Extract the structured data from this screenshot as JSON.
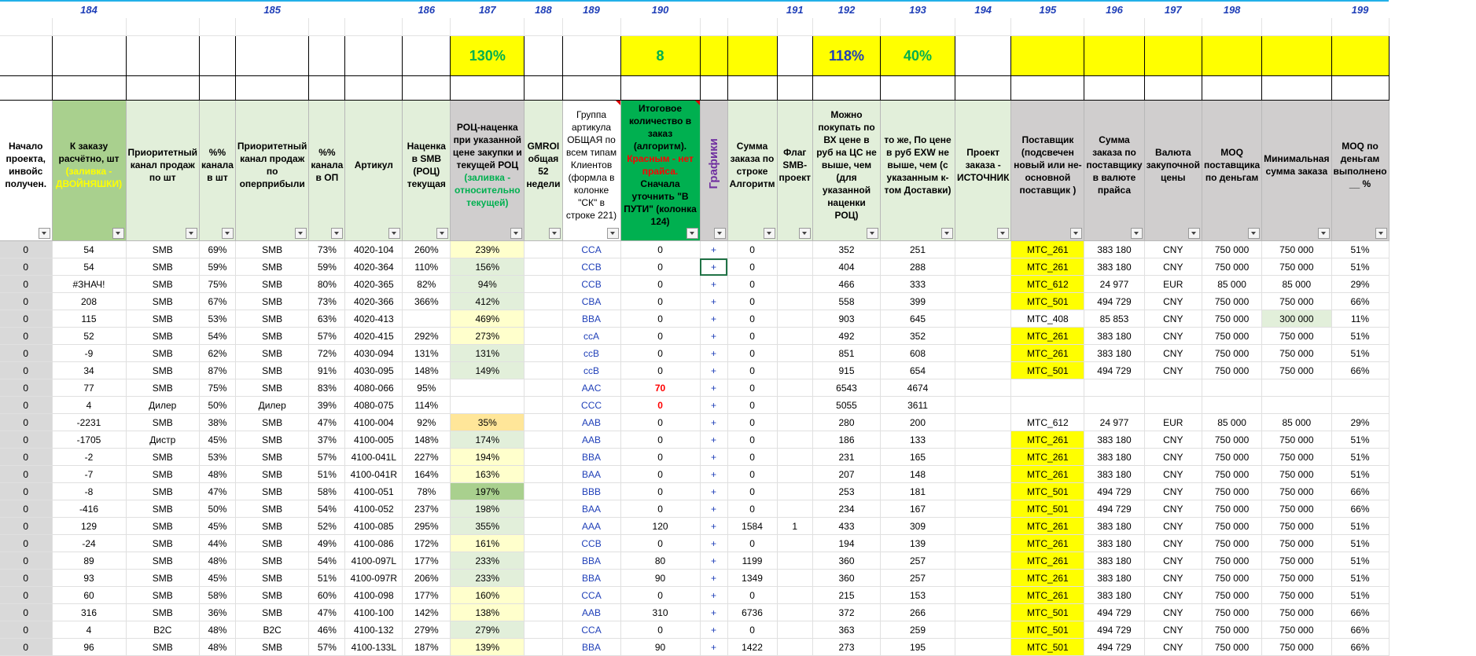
{
  "column_numbers": [
    "",
    "184",
    "",
    "",
    "185",
    "",
    "",
    "186",
    "187",
    "188",
    "189",
    "190",
    "",
    "",
    "191",
    "192",
    "193",
    "194",
    "195",
    "196",
    "197",
    "198",
    "",
    "199"
  ],
  "big_row": {
    "c187": "130%",
    "c190": "8",
    "c192": "118%",
    "c193": "40%"
  },
  "headers": {
    "h0": "Начало проекта, инвойс получен.",
    "h1a": "К заказу расчётно, шт",
    "h1b": "(заливка - ДВОЙНЯШКИ)",
    "h2": "Приоритетный канал продаж по шт",
    "h3": "%% канала в шт",
    "h4": "Приоритетный канал продаж по оперприбыли",
    "h5": "%% канала в ОП",
    "h6": "Артикул",
    "h7": "Наценка в SMB (РОЦ) текущая",
    "h8a": "РОЦ-наценка при указанной цене закупки и текущей РОЦ",
    "h8b": "(заливка - относительно текущей)",
    "h9": "GMROI общая 52 недели",
    "h10": "Группа артикула ОБЩАЯ по всем типам Клиентов (формла в колонке \"СК\" в строке 221)",
    "h11a": "Итоговое количество в заказ (алгоритм).",
    "h11b": "Красным - нет прайса.",
    "h11c": "Сначала уточнить \"В ПУТИ\" (колонка 124)",
    "h12": "Графики",
    "h13": "Сумма заказа по строке Алгоритм",
    "h14": "Флаг SMB-проект",
    "h15": "Можно покупать по ВХ цене в руб на ЦС не выше, чем (для указанной наценки РОЦ)",
    "h16": "то же, По цене в руб EXW не выше, чем (с указанным к-том Доставки)",
    "h17": "Проект заказа - ИСТОЧНИК",
    "h18": "Поставщик (подсвечен новый или не-основной поставщик )",
    "h19": "Сумма заказа по поставщику в валюте прайса",
    "h20": "Валюта закупочной цены",
    "h21": "MOQ поставщика по деньгам",
    "h22": "Минимальная сумма заказа",
    "h23": "MOQ по деньгам выполнено __ %"
  },
  "rows": [
    [
      "0",
      "54",
      "SMB",
      "69%",
      "SMB",
      "73%",
      "4020-104",
      "260%",
      "239%",
      "",
      "CCA",
      "0",
      "+",
      "0",
      "",
      "352",
      "251",
      "",
      "MTC_261",
      "383 180",
      "CNY",
      "750 000",
      "750 000",
      "51%"
    ],
    [
      "0",
      "54",
      "SMB",
      "59%",
      "SMB",
      "59%",
      "4020-364",
      "110%",
      "156%",
      "",
      "CCB",
      "0",
      "+",
      "0",
      "",
      "404",
      "288",
      "",
      "MTC_261",
      "383 180",
      "CNY",
      "750 000",
      "750 000",
      "51%"
    ],
    [
      "0",
      "#ЗНАЧ!",
      "SMB",
      "75%",
      "SMB",
      "80%",
      "4020-365",
      "82%",
      "94%",
      "",
      "CCB",
      "0",
      "+",
      "0",
      "",
      "466",
      "333",
      "",
      "MTC_612",
      "24 977",
      "EUR",
      "85 000",
      "85 000",
      "29%"
    ],
    [
      "0",
      "208",
      "SMB",
      "67%",
      "SMB",
      "73%",
      "4020-366",
      "366%",
      "412%",
      "",
      "CBA",
      "0",
      "+",
      "0",
      "",
      "558",
      "399",
      "",
      "MTC_501",
      "494 729",
      "CNY",
      "750 000",
      "750 000",
      "66%"
    ],
    [
      "0",
      "115",
      "SMB",
      "53%",
      "SMB",
      "63%",
      "4020-413",
      "",
      "469%",
      "",
      "BBA",
      "0",
      "+",
      "0",
      "",
      "903",
      "645",
      "",
      "MTC_408",
      "85 853",
      "CNY",
      "750 000",
      "300 000",
      "11%"
    ],
    [
      "0",
      "52",
      "SMB",
      "54%",
      "SMB",
      "57%",
      "4020-415",
      "292%",
      "273%",
      "",
      "ccA",
      "0",
      "+",
      "0",
      "",
      "492",
      "352",
      "",
      "MTC_261",
      "383 180",
      "CNY",
      "750 000",
      "750 000",
      "51%"
    ],
    [
      "0",
      "-9",
      "SMB",
      "62%",
      "SMB",
      "72%",
      "4030-094",
      "131%",
      "131%",
      "",
      "ccB",
      "0",
      "+",
      "0",
      "",
      "851",
      "608",
      "",
      "MTC_261",
      "383 180",
      "CNY",
      "750 000",
      "750 000",
      "51%"
    ],
    [
      "0",
      "34",
      "SMB",
      "87%",
      "SMB",
      "91%",
      "4030-095",
      "148%",
      "149%",
      "",
      "ccB",
      "0",
      "+",
      "0",
      "",
      "915",
      "654",
      "",
      "MTC_501",
      "494 729",
      "CNY",
      "750 000",
      "750 000",
      "66%"
    ],
    [
      "0",
      "77",
      "SMB",
      "75%",
      "SMB",
      "83%",
      "4080-066",
      "95%",
      "",
      "",
      "AAC",
      "70",
      "+",
      "0",
      "",
      "6543",
      "4674",
      "",
      "",
      "",
      "",
      "",
      "",
      ""
    ],
    [
      "0",
      "4",
      "Дилер",
      "50%",
      "Дилер",
      "39%",
      "4080-075",
      "114%",
      "",
      "",
      "CCC",
      "0",
      "+",
      "0",
      "",
      "5055",
      "3611",
      "",
      "",
      "",
      "",
      "",
      "",
      ""
    ],
    [
      "0",
      "-2231",
      "SMB",
      "38%",
      "SMB",
      "47%",
      "4100-004",
      "92%",
      "35%",
      "",
      "AAB",
      "0",
      "+",
      "0",
      "",
      "280",
      "200",
      "",
      "MTC_612",
      "24 977",
      "EUR",
      "85 000",
      "85 000",
      "29%"
    ],
    [
      "0",
      "-1705",
      "Дистр",
      "45%",
      "SMB",
      "37%",
      "4100-005",
      "148%",
      "174%",
      "",
      "AAB",
      "0",
      "+",
      "0",
      "",
      "186",
      "133",
      "",
      "MTC_261",
      "383 180",
      "CNY",
      "750 000",
      "750 000",
      "51%"
    ],
    [
      "0",
      "-2",
      "SMB",
      "53%",
      "SMB",
      "57%",
      "4100-041L",
      "227%",
      "194%",
      "",
      "BBA",
      "0",
      "+",
      "0",
      "",
      "231",
      "165",
      "",
      "MTC_261",
      "383 180",
      "CNY",
      "750 000",
      "750 000",
      "51%"
    ],
    [
      "0",
      "-7",
      "SMB",
      "48%",
      "SMB",
      "51%",
      "4100-041R",
      "164%",
      "163%",
      "",
      "BAA",
      "0",
      "+",
      "0",
      "",
      "207",
      "148",
      "",
      "MTC_261",
      "383 180",
      "CNY",
      "750 000",
      "750 000",
      "51%"
    ],
    [
      "0",
      "-8",
      "SMB",
      "47%",
      "SMB",
      "58%",
      "4100-051",
      "78%",
      "197%",
      "",
      "BBB",
      "0",
      "+",
      "0",
      "",
      "253",
      "181",
      "",
      "MTC_501",
      "494 729",
      "CNY",
      "750 000",
      "750 000",
      "66%"
    ],
    [
      "0",
      "-416",
      "SMB",
      "50%",
      "SMB",
      "54%",
      "4100-052",
      "237%",
      "198%",
      "",
      "BAA",
      "0",
      "+",
      "0",
      "",
      "234",
      "167",
      "",
      "MTC_501",
      "494 729",
      "CNY",
      "750 000",
      "750 000",
      "66%"
    ],
    [
      "0",
      "129",
      "SMB",
      "45%",
      "SMB",
      "52%",
      "4100-085",
      "295%",
      "355%",
      "",
      "AAA",
      "120",
      "+",
      "1584",
      "1",
      "433",
      "309",
      "",
      "MTC_261",
      "383 180",
      "CNY",
      "750 000",
      "750 000",
      "51%"
    ],
    [
      "0",
      "-24",
      "SMB",
      "44%",
      "SMB",
      "49%",
      "4100-086",
      "172%",
      "161%",
      "",
      "CCB",
      "0",
      "+",
      "0",
      "",
      "194",
      "139",
      "",
      "MTC_261",
      "383 180",
      "CNY",
      "750 000",
      "750 000",
      "51%"
    ],
    [
      "0",
      "89",
      "SMB",
      "48%",
      "SMB",
      "54%",
      "4100-097L",
      "177%",
      "233%",
      "",
      "BBA",
      "80",
      "+",
      "1199",
      "",
      "360",
      "257",
      "",
      "MTC_261",
      "383 180",
      "CNY",
      "750 000",
      "750 000",
      "51%"
    ],
    [
      "0",
      "93",
      "SMB",
      "45%",
      "SMB",
      "51%",
      "4100-097R",
      "206%",
      "233%",
      "",
      "BBA",
      "90",
      "+",
      "1349",
      "",
      "360",
      "257",
      "",
      "MTC_261",
      "383 180",
      "CNY",
      "750 000",
      "750 000",
      "51%"
    ],
    [
      "0",
      "60",
      "SMB",
      "58%",
      "SMB",
      "60%",
      "4100-098",
      "177%",
      "160%",
      "",
      "CCA",
      "0",
      "+",
      "0",
      "",
      "215",
      "153",
      "",
      "MTC_261",
      "383 180",
      "CNY",
      "750 000",
      "750 000",
      "51%"
    ],
    [
      "0",
      "316",
      "SMB",
      "36%",
      "SMB",
      "47%",
      "4100-100",
      "142%",
      "138%",
      "",
      "AAB",
      "310",
      "+",
      "6736",
      "",
      "372",
      "266",
      "",
      "MTC_501",
      "494 729",
      "CNY",
      "750 000",
      "750 000",
      "66%"
    ],
    [
      "0",
      "4",
      "B2C",
      "48%",
      "B2C",
      "46%",
      "4100-132",
      "279%",
      "279%",
      "",
      "CCA",
      "0",
      "+",
      "0",
      "",
      "363",
      "259",
      "",
      "MTC_501",
      "494 729",
      "CNY",
      "750 000",
      "750 000",
      "66%"
    ],
    [
      "0",
      "96",
      "SMB",
      "48%",
      "SMB",
      "57%",
      "4100-133L",
      "187%",
      "139%",
      "",
      "BBA",
      "90",
      "+",
      "1422",
      "",
      "273",
      "195",
      "",
      "MTC_501",
      "494 729",
      "CNY",
      "750 000",
      "750 000",
      "66%"
    ]
  ]
}
